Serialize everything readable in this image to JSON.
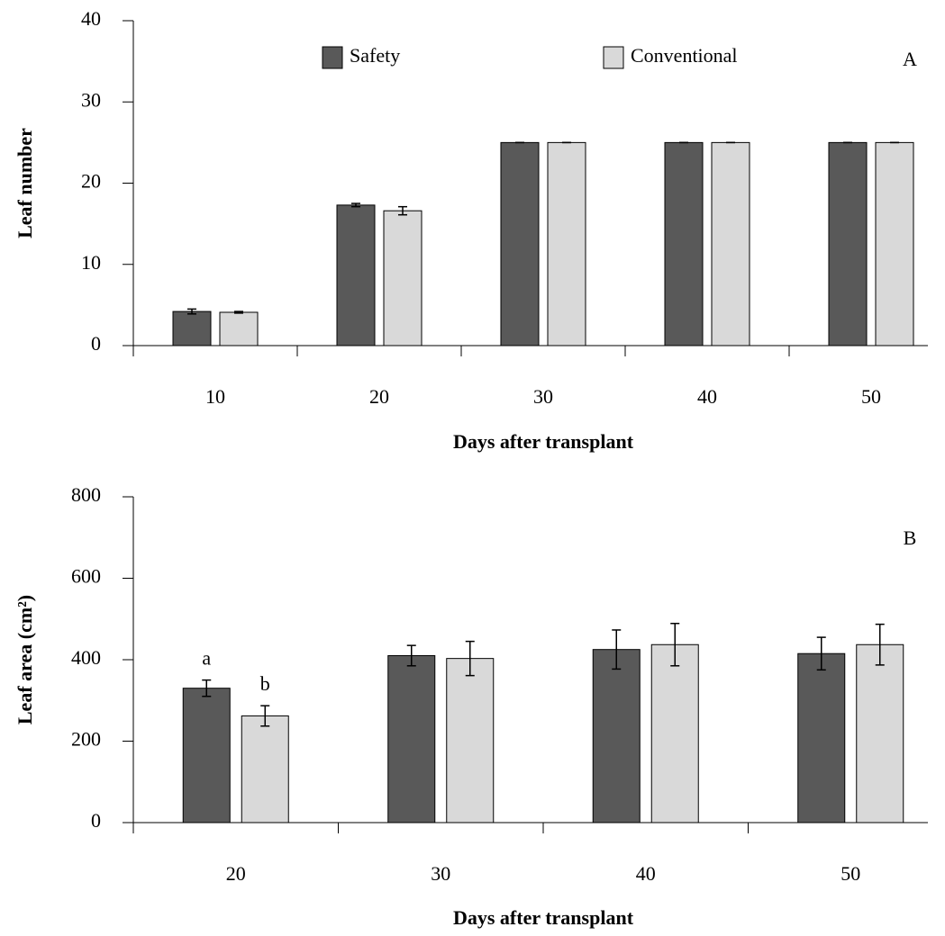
{
  "chart_data": [
    {
      "type": "bar",
      "panel_label": "A",
      "y_label": "Leaf number",
      "x_label": "Days after transplant",
      "categories": [
        "10",
        "20",
        "30",
        "40",
        "50"
      ],
      "series": [
        {
          "name": "Safety",
          "color": "#595959",
          "values": [
            4.2,
            17.3,
            25,
            25,
            25
          ],
          "errors": [
            0.3,
            0.2,
            0,
            0,
            0
          ]
        },
        {
          "name": "Conventional",
          "color": "#d9d9d9",
          "values": [
            4.1,
            16.6,
            25,
            25,
            25
          ],
          "errors": [
            0.1,
            0.5,
            0,
            0,
            0
          ]
        }
      ],
      "ylim": [
        0,
        40
      ],
      "yticks": [
        0,
        10,
        20,
        30,
        40
      ]
    },
    {
      "type": "bar",
      "panel_label": "B",
      "y_label": "Leaf area (cm²)",
      "x_label": "Days after transplant",
      "categories": [
        "20",
        "30",
        "40",
        "50"
      ],
      "series": [
        {
          "color": "#595959",
          "values": [
            330,
            410,
            425,
            415
          ],
          "errors": [
            20,
            25,
            48,
            40
          ]
        },
        {
          "color": "#d9d9d9",
          "values": [
            262,
            403,
            437,
            437
          ],
          "errors": [
            25,
            42,
            52,
            50
          ]
        }
      ],
      "annotations": [
        {
          "text": "a",
          "series": 0,
          "category": 0
        },
        {
          "text": "b",
          "series": 1,
          "category": 0
        }
      ],
      "ylim": [
        0,
        800
      ],
      "yticks": [
        0,
        200,
        400,
        600,
        800
      ]
    }
  ]
}
